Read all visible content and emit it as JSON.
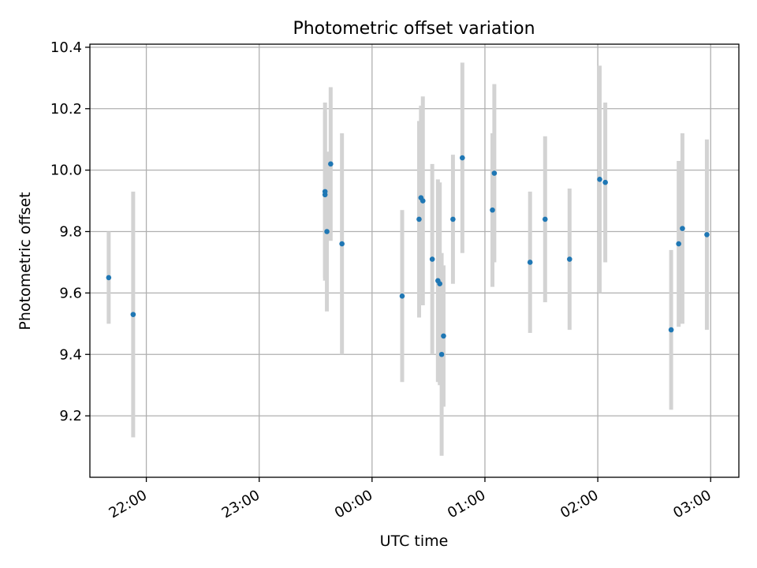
{
  "chart_data": {
    "type": "scatter",
    "title": "Photometric offset variation",
    "xlabel": "UTC time",
    "ylabel": "Photometric offset",
    "x_ticks": [
      "22:00",
      "23:00",
      "00:00",
      "01:00",
      "02:00",
      "03:00"
    ],
    "y_ticks": [
      "9.2",
      "9.4",
      "9.6",
      "9.8",
      "10.0",
      "10.2",
      "10.4"
    ],
    "xlim": [
      "21:30",
      "03:15"
    ],
    "ylim": [
      9.0,
      10.41
    ],
    "grid": true,
    "colors": {
      "point": "#1f77b4",
      "errorbar": "#d3d3d3",
      "grid": "#b0b0b0"
    },
    "series": [
      {
        "points": [
          {
            "time": "21:40",
            "y": 9.65,
            "err": 0.15
          },
          {
            "time": "21:53",
            "y": 9.53,
            "err": 0.4
          },
          {
            "time": "23:35",
            "y": 9.92,
            "err": 0.27
          },
          {
            "time": "23:35",
            "y": 9.93,
            "err": 0.29
          },
          {
            "time": "23:36",
            "y": 9.8,
            "err": 0.26
          },
          {
            "time": "23:38",
            "y": 10.02,
            "err": 0.25
          },
          {
            "time": "23:44",
            "y": 9.76,
            "err": 0.36
          },
          {
            "time": "00:16",
            "y": 9.59,
            "err": 0.28
          },
          {
            "time": "00:25",
            "y": 9.84,
            "err": 0.32
          },
          {
            "time": "00:26",
            "y": 9.91,
            "err": 0.3
          },
          {
            "time": "00:27",
            "y": 9.9,
            "err": 0.34
          },
          {
            "time": "00:32",
            "y": 9.71,
            "err": 0.31
          },
          {
            "time": "00:35",
            "y": 9.64,
            "err": 0.33
          },
          {
            "time": "00:36",
            "y": 9.63,
            "err": 0.33
          },
          {
            "time": "00:37",
            "y": 9.4,
            "err": 0.33
          },
          {
            "time": "00:38",
            "y": 9.46,
            "err": 0.23
          },
          {
            "time": "00:43",
            "y": 9.84,
            "err": 0.21
          },
          {
            "time": "00:48",
            "y": 10.04,
            "err": 0.31
          },
          {
            "time": "01:04",
            "y": 9.87,
            "err": 0.25
          },
          {
            "time": "01:05",
            "y": 9.99,
            "err": 0.29
          },
          {
            "time": "01:24",
            "y": 9.7,
            "err": 0.23
          },
          {
            "time": "01:32",
            "y": 9.84,
            "err": 0.27
          },
          {
            "time": "01:45",
            "y": 9.71,
            "err": 0.23
          },
          {
            "time": "02:01",
            "y": 9.97,
            "err": 0.37
          },
          {
            "time": "02:04",
            "y": 9.96,
            "err": 0.26
          },
          {
            "time": "02:39",
            "y": 9.48,
            "err": 0.26
          },
          {
            "time": "02:43",
            "y": 9.76,
            "err": 0.27
          },
          {
            "time": "02:45",
            "y": 9.81,
            "err": 0.31
          },
          {
            "time": "02:58",
            "y": 9.79,
            "err": 0.31
          }
        ]
      }
    ]
  }
}
